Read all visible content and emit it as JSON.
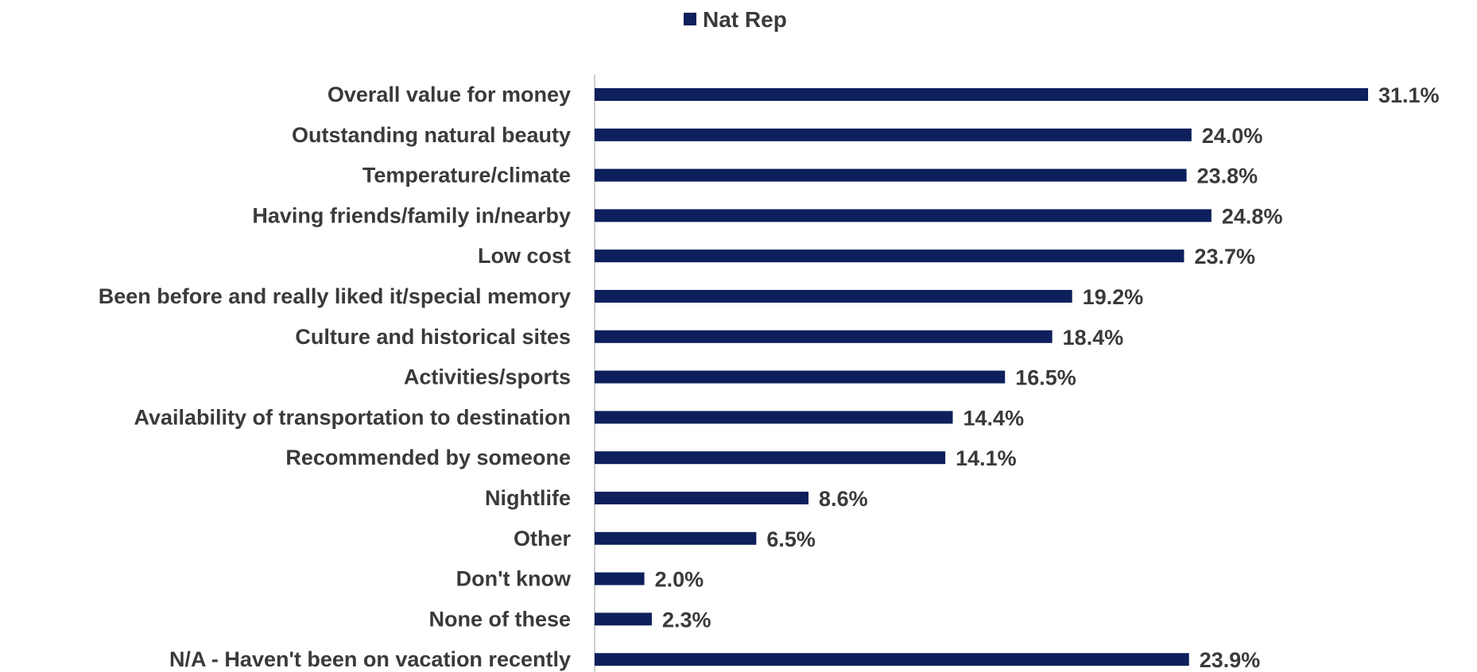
{
  "chart_data": {
    "type": "bar",
    "orientation": "horizontal",
    "categories": [
      "Overall value for money",
      "Outstanding natural beauty",
      "Temperature/climate",
      "Having friends/family in/nearby",
      "Low cost",
      "Been before and really liked it/special memory",
      "Culture and historical sites",
      "Activities/sports",
      "Availability of transportation to destination",
      "Recommended by someone",
      "Nightlife",
      "Other",
      "Don't know",
      "None of these",
      "N/A - Haven't been on vacation recently"
    ],
    "series": [
      {
        "name": "Nat Rep",
        "color": "#0d1f5c",
        "values": [
          31.1,
          24.0,
          23.8,
          24.8,
          23.7,
          19.2,
          18.4,
          16.5,
          14.4,
          14.1,
          8.6,
          6.5,
          2.0,
          2.3,
          23.9
        ],
        "labels": [
          "31.1%",
          "24.0%",
          "23.8%",
          "24.8%",
          "23.7%",
          "19.2%",
          "18.4%",
          "16.5%",
          "14.4%",
          "14.1%",
          "8.6%",
          "6.5%",
          "2.0%",
          "2.3%",
          "23.9%"
        ]
      }
    ],
    "xlim": [
      0,
      31.1
    ],
    "grid": false,
    "legend": "top-center",
    "axis_color": "#bfbfbf",
    "text_color": "#3a3a3a"
  }
}
